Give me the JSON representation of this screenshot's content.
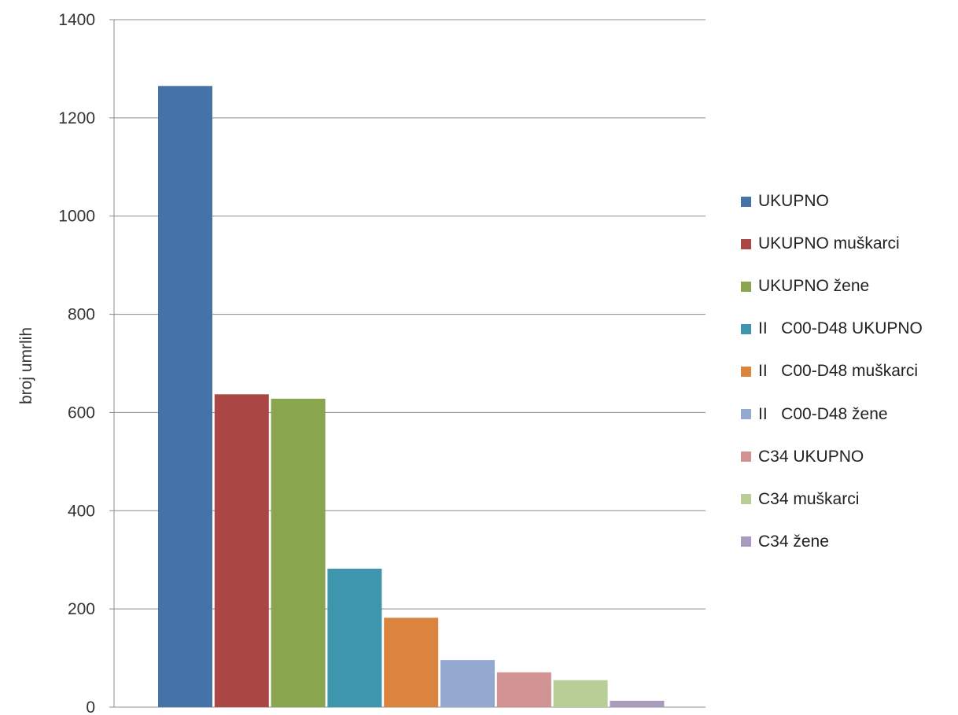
{
  "chart_data": {
    "type": "bar",
    "title": "",
    "xlabel": "",
    "ylabel": "broj umrlih",
    "ylim": [
      0,
      1400
    ],
    "yticks": [
      0,
      200,
      400,
      600,
      800,
      1000,
      1200,
      1400
    ],
    "grid": true,
    "legend_position": "right",
    "series": [
      {
        "name": "UKUPNO",
        "value": 1265,
        "color": "#4572A7"
      },
      {
        "name": "UKUPNO muškarci",
        "value": 637,
        "color": "#AA4643"
      },
      {
        "name": "UKUPNO žene",
        "value": 628,
        "color": "#89A54E"
      },
      {
        "name": "II   C00-D48 UKUPNO",
        "value": 282,
        "color": "#3D96AE"
      },
      {
        "name": "II   C00-D48 muškarci",
        "value": 182,
        "color": "#DB843D"
      },
      {
        "name": "II   C00-D48 žene",
        "value": 96,
        "color": "#93A9CF"
      },
      {
        "name": "C34 UKUPNO",
        "value": 71,
        "color": "#D19392"
      },
      {
        "name": "C34 muškarci",
        "value": 55,
        "color": "#B9CD96"
      },
      {
        "name": "C34 žene",
        "value": 13,
        "color": "#A99BBD"
      }
    ]
  }
}
